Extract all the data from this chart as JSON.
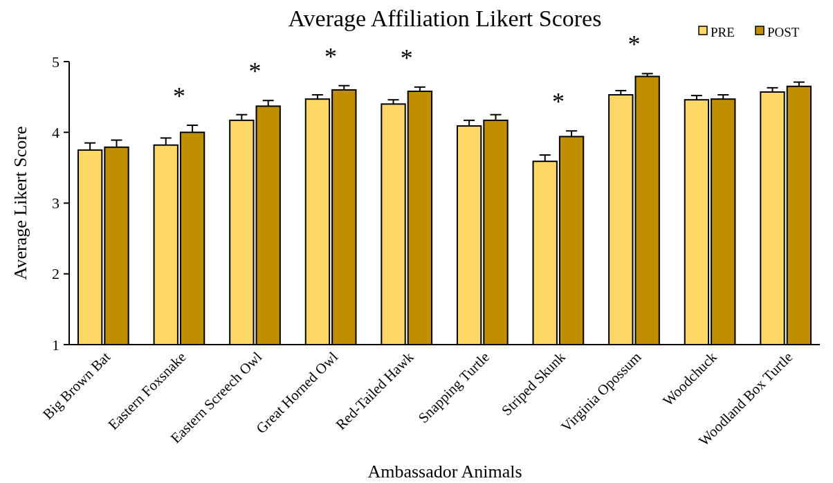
{
  "chart_data": {
    "type": "bar",
    "title": "Average Affiliation Likert Scores",
    "xlabel": "Ambassador Animals",
    "ylabel": "Average Likert Score",
    "categories": [
      "Big Brown Bat",
      "Eastern Foxsnake",
      "Eastern Screech Owl",
      "Great Horned Owl",
      "Red-Tailed Hawk",
      "Snapping Turtle",
      "Striped Skunk",
      "Virginia Opossum",
      "Woodchuck",
      "Woodland Box Turtle"
    ],
    "series": [
      {
        "name": "PRE",
        "color": "#fdd866",
        "values": [
          3.75,
          3.82,
          4.17,
          4.47,
          4.4,
          4.09,
          3.59,
          4.53,
          4.46,
          4.57
        ],
        "errors": [
          [
            3.75,
            3.85
          ],
          [
            3.82,
            3.92
          ],
          [
            4.17,
            4.25
          ],
          [
            4.47,
            4.53
          ],
          [
            4.4,
            4.46
          ],
          [
            4.09,
            4.17
          ],
          [
            3.59,
            3.68
          ],
          [
            4.53,
            4.59
          ],
          [
            4.46,
            4.52
          ],
          [
            4.57,
            4.63
          ]
        ]
      },
      {
        "name": "POST",
        "color": "#bf8f00",
        "values": [
          3.79,
          4.0,
          4.37,
          4.6,
          4.58,
          4.17,
          3.94,
          4.79,
          4.47,
          4.65
        ],
        "errors": [
          [
            3.79,
            3.89
          ],
          [
            4.0,
            4.1
          ],
          [
            4.37,
            4.45
          ],
          [
            4.6,
            4.66
          ],
          [
            4.58,
            4.64
          ],
          [
            4.17,
            4.25
          ],
          [
            3.94,
            4.02
          ],
          [
            4.79,
            4.83
          ],
          [
            4.47,
            4.53
          ],
          [
            4.65,
            4.71
          ]
        ]
      }
    ],
    "annotations": [
      {
        "text": "*",
        "x": "Eastern Foxsnake",
        "y": 4.1
      },
      {
        "text": "*",
        "x": "Eastern Screech Owl",
        "y": 4.45
      },
      {
        "text": "*",
        "x": "Great Horned Owl",
        "y": 4.66
      },
      {
        "text": "*",
        "x": "Red-Tailed Hawk",
        "y": 4.64
      },
      {
        "text": "*",
        "x": "Striped Skunk",
        "y": 4.02
      },
      {
        "text": "*",
        "x": "Virginia Opossum",
        "y": 4.83
      }
    ],
    "ylim": [
      1,
      5
    ],
    "yticks": [
      1,
      2,
      3,
      4,
      5
    ],
    "grid": false,
    "legend": "top right"
  }
}
